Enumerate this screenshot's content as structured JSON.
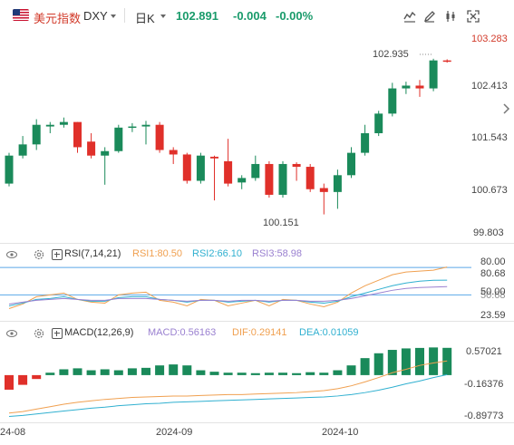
{
  "header": {
    "symbol_name": "美元指数",
    "symbol_code": "DXY",
    "period": "日K",
    "price": "102.891",
    "change": "-0.004",
    "change_pct": "-0.00%"
  },
  "toolbar_icons": [
    "line-chart-icon",
    "pencil-icon",
    "draw-tools-icon",
    "fullscreen-icon"
  ],
  "price_axis": [
    "103.283",
    "102.413",
    "101.543",
    "100.673",
    "99.803"
  ],
  "price_annotations": {
    "high": "102.935",
    "low": "100.151"
  },
  "rsi": {
    "title": "RSI(7,14,21)",
    "rsi1": "RSI1:80.50",
    "rsi2": "RSI2:66.10",
    "rsi3": "RSI3:58.98",
    "axis": [
      "80.00",
      "80.68",
      "50.00",
      "50.68",
      "23.59"
    ]
  },
  "macd": {
    "title": "MACD(12,26,9)",
    "macd": "MACD:0.56163",
    "dif": "DIF:0.29141",
    "dea": "DEA:0.01059",
    "axis": [
      "0.57021",
      "-0.16376",
      "-0.89773"
    ]
  },
  "x_axis": [
    "24-08",
    "2024-09",
    "2024-10"
  ],
  "colors": {
    "up": "#1a8a5a",
    "down": "#e0302a",
    "rsi1": "#f0a050",
    "rsi2": "#30b0d0",
    "rsi3": "#9a80d0",
    "dif": "#f0a050",
    "dea": "#30b0d0"
  },
  "chart_data": [
    {
      "type": "candlestick",
      "title": "美元指数 DXY 日K",
      "ylim": [
        99.803,
        103.283
      ],
      "candles": [
        {
          "o": 100.7,
          "c": 101.2,
          "h": 101.25,
          "l": 100.65
        },
        {
          "o": 101.2,
          "c": 101.4,
          "h": 101.55,
          "l": 101.15
        },
        {
          "o": 101.4,
          "c": 101.75,
          "h": 101.85,
          "l": 101.3
        },
        {
          "o": 101.72,
          "c": 101.75,
          "h": 101.8,
          "l": 101.6
        },
        {
          "o": 101.75,
          "c": 101.8,
          "h": 101.88,
          "l": 101.7
        },
        {
          "o": 101.8,
          "c": 101.35,
          "h": 101.8,
          "l": 101.25
        },
        {
          "o": 101.45,
          "c": 101.2,
          "h": 101.6,
          "l": 101.15
        },
        {
          "o": 101.2,
          "c": 101.28,
          "h": 101.35,
          "l": 100.68
        },
        {
          "o": 101.28,
          "c": 101.7,
          "h": 101.75,
          "l": 101.25
        },
        {
          "o": 101.7,
          "c": 101.72,
          "h": 101.78,
          "l": 101.62
        },
        {
          "o": 101.72,
          "c": 101.75,
          "h": 101.82,
          "l": 101.4
        },
        {
          "o": 101.75,
          "c": 101.3,
          "h": 101.8,
          "l": 101.25
        },
        {
          "o": 101.3,
          "c": 101.22,
          "h": 101.35,
          "l": 101.05
        },
        {
          "o": 101.22,
          "c": 100.75,
          "h": 101.25,
          "l": 100.7
        },
        {
          "o": 100.75,
          "c": 101.2,
          "h": 101.25,
          "l": 100.7
        },
        {
          "o": 101.18,
          "c": 101.15,
          "h": 101.2,
          "l": 100.4
        },
        {
          "o": 101.1,
          "c": 100.7,
          "h": 101.5,
          "l": 100.65
        },
        {
          "o": 100.72,
          "c": 100.8,
          "h": 100.85,
          "l": 100.6
        },
        {
          "o": 100.8,
          "c": 101.05,
          "h": 101.2,
          "l": 100.75
        },
        {
          "o": 101.05,
          "c": 100.5,
          "h": 101.1,
          "l": 100.45
        },
        {
          "o": 100.5,
          "c": 101.05,
          "h": 101.1,
          "l": 100.45
        },
        {
          "o": 101.05,
          "c": 101.0,
          "h": 101.08,
          "l": 100.75
        },
        {
          "o": 101.0,
          "c": 100.6,
          "h": 101.05,
          "l": 100.55
        },
        {
          "o": 100.62,
          "c": 100.55,
          "h": 100.7,
          "l": 100.15
        },
        {
          "o": 100.55,
          "c": 100.85,
          "h": 100.95,
          "l": 100.25
        },
        {
          "o": 100.85,
          "c": 101.25,
          "h": 101.35,
          "l": 100.8
        },
        {
          "o": 101.25,
          "c": 101.6,
          "h": 101.75,
          "l": 101.2
        },
        {
          "o": 101.6,
          "c": 101.95,
          "h": 102.0,
          "l": 101.55
        },
        {
          "o": 101.95,
          "c": 102.4,
          "h": 102.5,
          "l": 101.9
        },
        {
          "o": 102.4,
          "c": 102.45,
          "h": 102.52,
          "l": 102.3
        },
        {
          "o": 102.45,
          "c": 102.4,
          "h": 102.55,
          "l": 102.25
        },
        {
          "o": 102.4,
          "c": 102.9,
          "h": 102.93,
          "l": 102.35
        },
        {
          "o": 102.9,
          "c": 102.89,
          "h": 102.92,
          "l": 102.86
        }
      ]
    },
    {
      "type": "line",
      "title": "RSI(7,14,21)",
      "series": [
        {
          "name": "RSI1",
          "values": [
            35,
            40,
            48,
            50,
            52,
            45,
            42,
            41,
            50,
            52,
            53,
            44,
            42,
            38,
            45,
            44,
            38,
            41,
            44,
            38,
            45,
            44,
            40,
            37,
            42,
            52,
            60,
            66,
            72,
            75,
            76,
            77,
            80.5
          ]
        },
        {
          "name": "RSI2",
          "values": [
            38,
            41,
            45,
            46,
            48,
            45,
            43,
            43,
            47,
            48,
            48,
            45,
            44,
            42,
            44,
            44,
            42,
            43,
            44,
            42,
            44,
            44,
            42,
            41,
            43,
            48,
            52,
            56,
            60,
            63,
            65,
            66,
            66.1
          ]
        },
        {
          "name": "RSI3",
          "values": [
            40,
            42,
            44,
            45,
            46,
            45,
            44,
            44,
            46,
            46,
            46,
            45,
            44,
            43,
            44,
            44,
            43,
            44,
            44,
            43,
            44,
            44,
            43,
            43,
            44,
            46,
            49,
            52,
            55,
            57,
            58,
            58.5,
            58.98
          ]
        }
      ],
      "ylim": [
        23.59,
        90
      ]
    },
    {
      "type": "bar",
      "title": "MACD(12,26,9)",
      "values": [
        -0.3,
        -0.2,
        -0.08,
        0.05,
        0.12,
        0.14,
        0.1,
        0.12,
        0.1,
        0.14,
        0.15,
        0.2,
        0.22,
        0.2,
        0.1,
        0.07,
        0.05,
        0.05,
        0.04,
        0.05,
        0.05,
        0.04,
        0.06,
        0.05,
        0.1,
        0.2,
        0.35,
        0.45,
        0.52,
        0.55,
        0.56,
        0.57,
        0.56163
      ],
      "series": [
        {
          "name": "DIF",
          "values": [
            -0.78,
            -0.75,
            -0.7,
            -0.65,
            -0.6,
            -0.56,
            -0.53,
            -0.5,
            -0.48,
            -0.46,
            -0.45,
            -0.44,
            -0.43,
            -0.43,
            -0.42,
            -0.41,
            -0.4,
            -0.4,
            -0.39,
            -0.38,
            -0.37,
            -0.36,
            -0.34,
            -0.32,
            -0.28,
            -0.22,
            -0.14,
            -0.05,
            0.05,
            0.12,
            0.2,
            0.25,
            0.29141
          ]
        },
        {
          "name": "DEA",
          "values": [
            -0.85,
            -0.83,
            -0.8,
            -0.77,
            -0.74,
            -0.71,
            -0.68,
            -0.66,
            -0.63,
            -0.61,
            -0.59,
            -0.58,
            -0.56,
            -0.55,
            -0.54,
            -0.53,
            -0.52,
            -0.51,
            -0.5,
            -0.49,
            -0.48,
            -0.47,
            -0.46,
            -0.45,
            -0.43,
            -0.4,
            -0.36,
            -0.31,
            -0.25,
            -0.18,
            -0.12,
            -0.05,
            0.01059
          ]
        }
      ],
      "ylim": [
        -0.89773,
        0.67
      ]
    }
  ]
}
